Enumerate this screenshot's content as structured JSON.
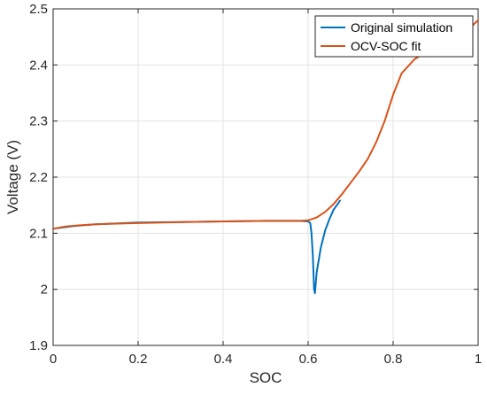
{
  "chart_data": {
    "type": "line",
    "title": "",
    "xlabel": "SOC",
    "ylabel": "Voltage (V)",
    "xlim": [
      0,
      1
    ],
    "ylim": [
      1.9,
      2.5
    ],
    "x_ticks": [
      0,
      0.2,
      0.4,
      0.6,
      0.8,
      1
    ],
    "x_tick_labels": [
      "0",
      "0.2",
      "0.4",
      "0.6",
      "0.8",
      "1"
    ],
    "y_ticks": [
      1.9,
      2.0,
      2.1,
      2.2,
      2.3,
      2.4,
      2.5
    ],
    "y_tick_labels": [
      "1.9",
      "2",
      "2.1",
      "2.2",
      "2.3",
      "2.4",
      "2.5"
    ],
    "grid": true,
    "legend_position": "top-right",
    "series": [
      {
        "name": "Original simulation",
        "color": "#0072BD",
        "x": [
          0.0,
          0.05,
          0.1,
          0.2,
          0.3,
          0.4,
          0.5,
          0.55,
          0.58,
          0.6,
          0.605,
          0.608,
          0.611,
          0.614,
          0.616,
          0.62,
          0.63,
          0.64,
          0.65,
          0.66,
          0.675
        ],
        "y": [
          2.108,
          2.113,
          2.116,
          2.119,
          2.12,
          2.121,
          2.122,
          2.122,
          2.122,
          2.121,
          2.118,
          2.1,
          2.06,
          2.0,
          1.993,
          2.03,
          2.075,
          2.105,
          2.125,
          2.142,
          2.158
        ]
      },
      {
        "name": "OCV-SOC fit",
        "color": "#D95319",
        "x": [
          0.0,
          0.03,
          0.06,
          0.1,
          0.2,
          0.3,
          0.4,
          0.5,
          0.55,
          0.58,
          0.6,
          0.62,
          0.64,
          0.66,
          0.68,
          0.7,
          0.72,
          0.74,
          0.76,
          0.78,
          0.8,
          0.82,
          0.85,
          0.88,
          0.91,
          0.94,
          0.97,
          1.0
        ],
        "y": [
          2.108,
          2.112,
          2.114,
          2.116,
          2.118,
          2.12,
          2.121,
          2.122,
          2.122,
          2.122,
          2.123,
          2.128,
          2.138,
          2.152,
          2.17,
          2.19,
          2.21,
          2.232,
          2.262,
          2.3,
          2.347,
          2.385,
          2.41,
          2.425,
          2.436,
          2.446,
          2.458,
          2.48
        ]
      }
    ]
  }
}
